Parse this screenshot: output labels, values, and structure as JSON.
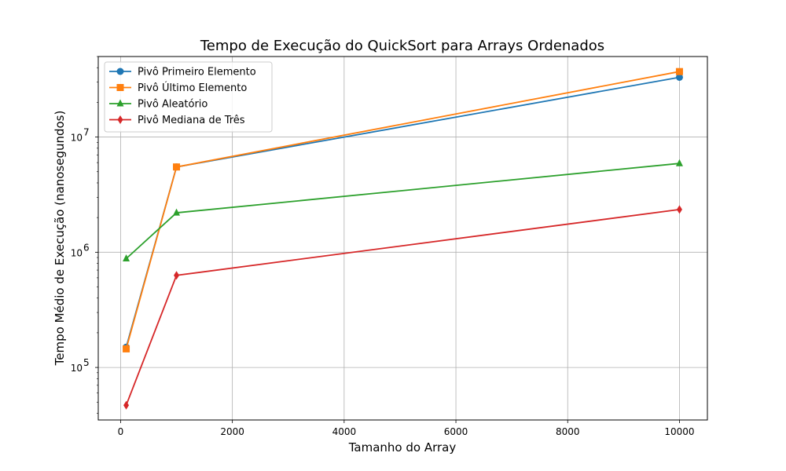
{
  "chart_data": {
    "type": "line",
    "title": "Tempo de Execução do QuickSort para Arrays Ordenados",
    "xlabel": "Tamanho do Array",
    "ylabel": "Tempo Médio de Execução (nanosegundos)",
    "x": [
      100,
      1000,
      10000
    ],
    "xlim": [
      -400,
      10500
    ],
    "ylim": [
      35000,
      50000000
    ],
    "yscale": "log",
    "grid": true,
    "legend_position": "top-left",
    "x_ticks": [
      {
        "value": 0,
        "label": "0"
      },
      {
        "value": 2000,
        "label": "2000"
      },
      {
        "value": 4000,
        "label": "4000"
      },
      {
        "value": 6000,
        "label": "6000"
      },
      {
        "value": 8000,
        "label": "8000"
      },
      {
        "value": 10000,
        "label": "10000"
      }
    ],
    "y_ticks": [
      {
        "value": 100000,
        "base": "10",
        "exp": "5"
      },
      {
        "value": 1000000,
        "base": "10",
        "exp": "6"
      },
      {
        "value": 10000000,
        "base": "10",
        "exp": "7"
      }
    ],
    "series": [
      {
        "name": "Pivô Primeiro Elemento",
        "values": [
          150000,
          5500000,
          33000000
        ],
        "color": "#1f77b4",
        "marker": "circle"
      },
      {
        "name": "Pivô Último Elemento",
        "values": [
          145000,
          5500000,
          37000000
        ],
        "color": "#ff7f0e",
        "marker": "square"
      },
      {
        "name": "Pivô Aleatório",
        "values": [
          880000,
          2200000,
          5900000
        ],
        "color": "#2ca02c",
        "marker": "triangle"
      },
      {
        "name": "Pivô Mediana de Três",
        "values": [
          47000,
          630000,
          2350000
        ],
        "color": "#d62728",
        "marker": "diamond"
      }
    ]
  }
}
